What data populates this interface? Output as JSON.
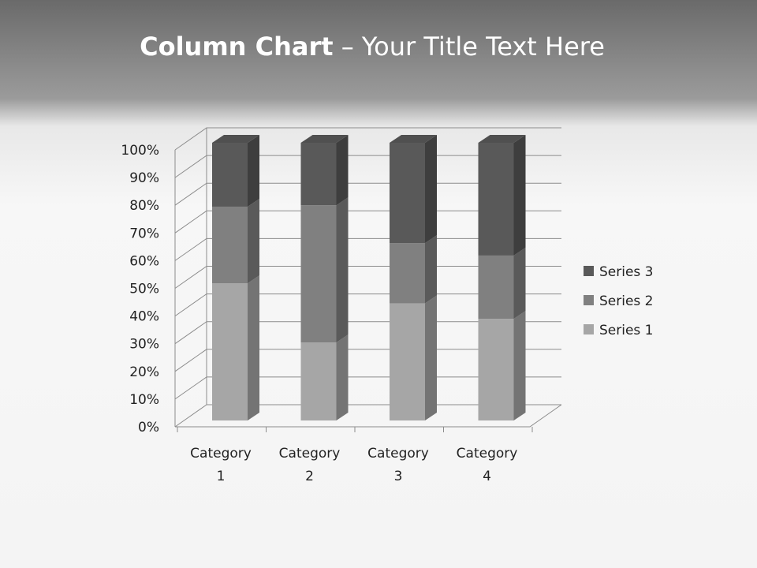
{
  "slide": {
    "title_bold": "Column Chart",
    "title_rest": " – Your Title Text Here"
  },
  "chart_data": {
    "type": "bar",
    "stacked": "percent",
    "three_d": true,
    "categories": [
      "Category 1",
      "Category 2",
      "Category 3",
      "Category 4"
    ],
    "category_lines": [
      [
        "Category",
        "1"
      ],
      [
        "Category",
        "2"
      ],
      [
        "Category",
        "3"
      ],
      [
        "Category",
        "4"
      ]
    ],
    "series": [
      {
        "name": "Series 1",
        "values": [
          49.4,
          28.1,
          42.2,
          36.6
        ],
        "color": "#a6a6a6"
      },
      {
        "name": "Series 2",
        "values": [
          27.6,
          49.4,
          21.7,
          22.8
        ],
        "color": "#808080"
      },
      {
        "name": "Series 3",
        "values": [
          23.0,
          22.5,
          36.1,
          40.6
        ],
        "color": "#595959"
      }
    ],
    "yticks": [
      "0%",
      "10%",
      "20%",
      "30%",
      "40%",
      "50%",
      "60%",
      "70%",
      "80%",
      "90%",
      "100%"
    ],
    "ylim": [
      0,
      100
    ],
    "grid": true,
    "legend": "right"
  }
}
